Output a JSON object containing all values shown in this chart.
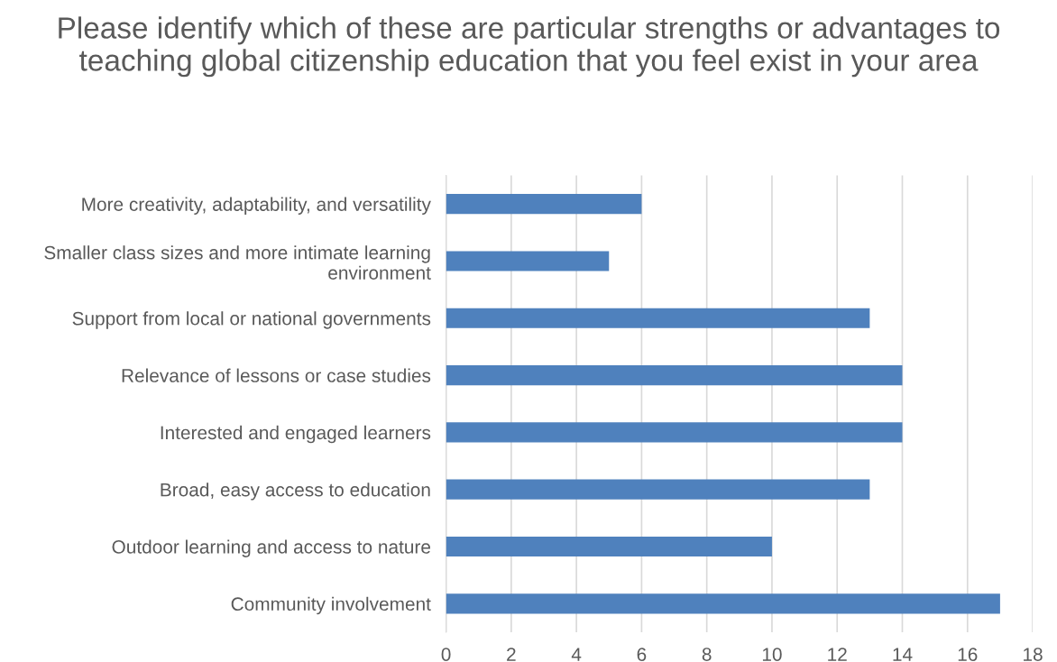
{
  "chart_data": {
    "type": "bar",
    "orientation": "horizontal",
    "title": "Please identify which of these are particular strengths or advantages to teaching global citizenship education that you feel exist in your area",
    "categories": [
      "More creativity, adaptability, and versatility",
      "Smaller class sizes and more intimate learning environment",
      "Support from local or national governments",
      "Relevance of lessons or case studies",
      "Interested and engaged learners",
      "Broad, easy access to education",
      "Outdoor learning and access to nature",
      "Community involvement"
    ],
    "values": [
      6,
      5,
      13,
      14,
      14,
      13,
      10,
      17
    ],
    "color": "#4f81bd",
    "xlim": [
      0,
      18
    ],
    "xticks": [
      0,
      2,
      4,
      6,
      8,
      10,
      12,
      14,
      16,
      18
    ],
    "grid": "x",
    "legend": false
  }
}
